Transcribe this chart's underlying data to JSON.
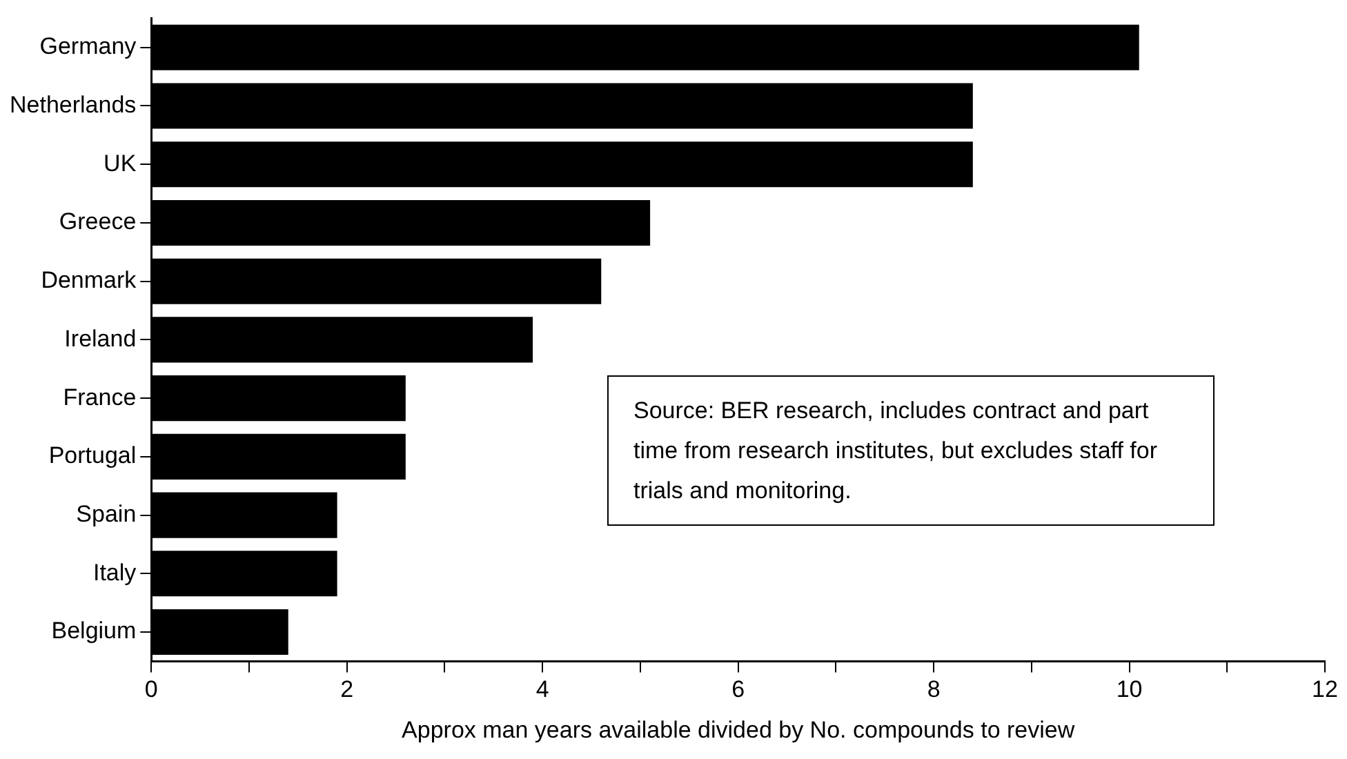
{
  "chart_data": {
    "type": "bar",
    "orientation": "horizontal",
    "xlabel": "Approx man years available divided by No. compounds to review",
    "categories": [
      "Germany",
      "Netherlands",
      "UK",
      "Greece",
      "Denmark",
      "Ireland",
      "France",
      "Portugal",
      "Spain",
      "Italy",
      "Belgium"
    ],
    "values": [
      10.1,
      8.4,
      8.4,
      5.1,
      4.6,
      3.9,
      2.6,
      2.6,
      1.9,
      1.9,
      1.4
    ],
    "color": "#000000",
    "xlim": [
      0,
      12
    ],
    "xticks": [
      0,
      {
        "value": 1,
        "label": null
      },
      2,
      {
        "value": 3,
        "label": null
      },
      4,
      {
        "value": 5,
        "label": null
      },
      6,
      {
        "value": 7,
        "label": null
      },
      8,
      {
        "value": 9,
        "label": null
      },
      10,
      {
        "value": 11,
        "label": null
      },
      12
    ],
    "grid": false,
    "legend": false,
    "annotations": [
      "Source: BER research, includes contract and part time from research institutes, but excludes staff for trials and monitoring."
    ]
  }
}
